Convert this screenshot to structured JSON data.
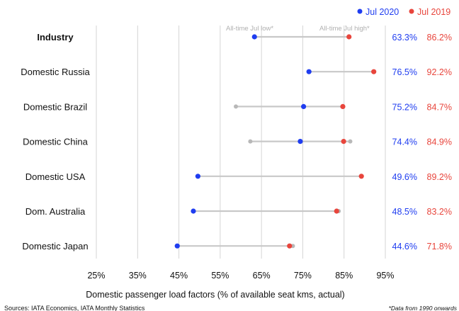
{
  "chart_data": {
    "type": "dumbbell",
    "xlabel": "Domestic passenger load factors (% of available seat kms, actual)",
    "xlim": [
      25,
      95
    ],
    "x_ticks": [
      "25%",
      "35%",
      "45%",
      "55%",
      "65%",
      "75%",
      "85%",
      "95%"
    ],
    "x_tick_values": [
      25,
      35,
      45,
      55,
      65,
      75,
      85,
      95
    ],
    "grid": "vertical",
    "legend_position": "top-right",
    "legend": [
      {
        "name": "Jul 2020",
        "color": "#1f3df0"
      },
      {
        "name": "Jul 2019",
        "color": "#e8453c"
      }
    ],
    "annotations": {
      "low": "All-time Jul low*",
      "high": "All-time Jul high*"
    },
    "rows": [
      {
        "label": "Industry",
        "bold": true,
        "jul2020": 63.3,
        "jul2019": 86.2,
        "jul2020_text": "63.3%",
        "jul2019_text": "86.2%",
        "low": 63.3,
        "high": 86.2
      },
      {
        "label": "Domestic Russia",
        "bold": false,
        "jul2020": 76.5,
        "jul2019": 92.2,
        "jul2020_text": "76.5%",
        "jul2019_text": "92.2%",
        "low": 76.5,
        "high": 92.2
      },
      {
        "label": "Domestic Brazil",
        "bold": false,
        "jul2020": 75.2,
        "jul2019": 84.7,
        "jul2020_text": "75.2%",
        "jul2019_text": "84.7%",
        "low": 58.8,
        "high": 84.7
      },
      {
        "label": "Domestic China",
        "bold": false,
        "jul2020": 74.4,
        "jul2019": 84.9,
        "jul2020_text": "74.4%",
        "jul2019_text": "84.9%",
        "low": 62.3,
        "high": 86.5
      },
      {
        "label": "Domestic USA",
        "bold": false,
        "jul2020": 49.6,
        "jul2019": 89.2,
        "jul2020_text": "49.6%",
        "jul2019_text": "89.2%",
        "low": 49.6,
        "high": 89.2
      },
      {
        "label": "Dom. Australia",
        "bold": false,
        "jul2020": 48.5,
        "jul2019": 83.2,
        "jul2020_text": "48.5%",
        "jul2019_text": "83.2%",
        "low": 48.5,
        "high": 83.7
      },
      {
        "label": "Domestic Japan",
        "bold": false,
        "jul2020": 44.6,
        "jul2019": 71.8,
        "jul2020_text": "44.6%",
        "jul2019_text": "71.8%",
        "low": 44.6,
        "high": 72.6
      }
    ],
    "colors": {
      "jul2020": "#1f3df0",
      "jul2019": "#e8453c",
      "range": "#c8c8c8",
      "range_marker": "#b8b8b8",
      "grid": "#d4d4d4"
    }
  },
  "source": "Sources: IATA Economics, IATA Monthly Statistics",
  "footnote": "*Data from 1990 onwards"
}
